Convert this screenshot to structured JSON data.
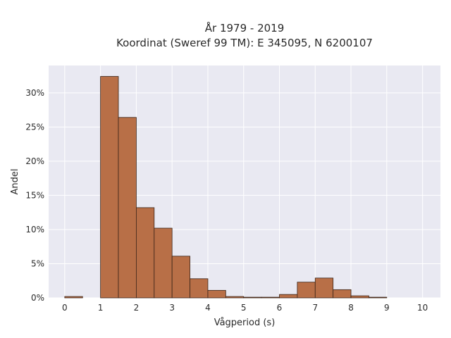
{
  "chart_data": {
    "type": "bar",
    "title_lines": [
      "År 1979 - 2019",
      "Koordinat (Sweref 99 TM): E 345095, N 6200107"
    ],
    "xlabel": "Vågperiod (s)",
    "ylabel": "Andel",
    "xlim": [
      -0.45,
      10.5
    ],
    "ylim": [
      0,
      0.34
    ],
    "x_ticks": [
      0,
      1,
      2,
      3,
      4,
      5,
      6,
      7,
      8,
      9,
      10
    ],
    "y_ticks": [
      0,
      0.05,
      0.1,
      0.15,
      0.2,
      0.25,
      0.3
    ],
    "y_tick_labels": [
      "0%",
      "5%",
      "10%",
      "15%",
      "20%",
      "25%",
      "30%"
    ],
    "bin_width": 0.5,
    "bin_starts": [
      0,
      0.5,
      1.0,
      1.5,
      2.0,
      2.5,
      3.0,
      3.5,
      4.0,
      4.5,
      5.0,
      5.5,
      6.0,
      6.5,
      7.0,
      7.5,
      8.0,
      8.5,
      9.0,
      9.5
    ],
    "values": [
      0.002,
      0,
      0.324,
      0.264,
      0.132,
      0.102,
      0.061,
      0.028,
      0.011,
      0.002,
      0.001,
      0.001,
      0.005,
      0.023,
      0.029,
      0.012,
      0.003,
      0.001,
      0,
      0
    ],
    "grid": true,
    "colors": {
      "bar_fill": "#b86f47",
      "bar_edge": "#3a2418",
      "plot_bg": "#e9e9f2",
      "grid": "#ffffff"
    }
  }
}
